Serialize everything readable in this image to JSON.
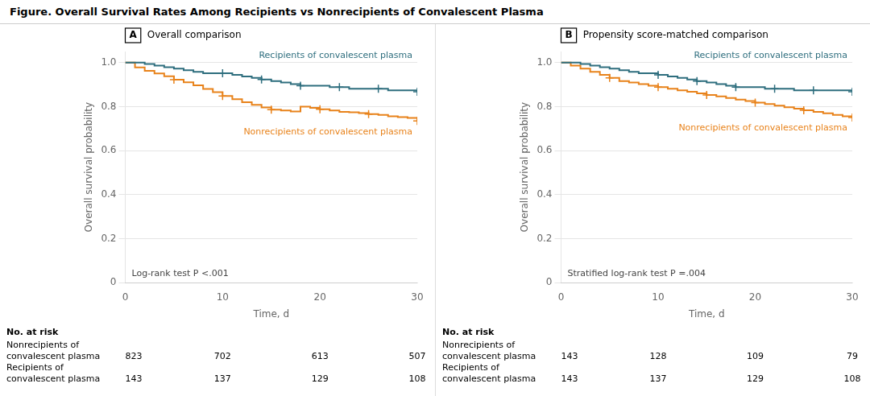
{
  "title": "Figure. Overall Survival Rates Among Recipients vs Nonrecipients of Convalescent Plasma",
  "chart_data": [
    {
      "type": "step",
      "title": "Overall comparison",
      "annotations": [
        "A",
        "Log-rank test P <.001"
      ],
      "xlabel": "Time, d",
      "ylabel": "Overall survival probability",
      "xlim": [
        0,
        30
      ],
      "xticks": [
        0,
        10,
        20,
        30
      ],
      "ylim": [
        0,
        1.05
      ],
      "yticks": [
        0,
        0.2,
        0.4,
        0.6,
        0.8,
        {
          "value": 1,
          "label": "1.0"
        }
      ],
      "grid": "y",
      "series": [
        {
          "name": "Recipients of convalescent plasma",
          "color": "#2E6E7E",
          "marker": "+",
          "x": [
            0,
            1,
            2,
            3,
            4,
            5,
            6,
            7,
            8,
            9,
            10,
            11,
            12,
            13,
            14,
            15,
            16,
            17,
            18,
            19,
            20,
            21,
            22,
            23,
            24,
            25,
            26,
            27,
            28,
            29,
            30
          ],
          "values": [
            1.0,
            1.0,
            0.993,
            0.986,
            0.979,
            0.972,
            0.965,
            0.958,
            0.951,
            0.951,
            0.951,
            0.944,
            0.937,
            0.93,
            0.923,
            0.916,
            0.909,
            0.902,
            0.895,
            0.895,
            0.895,
            0.888,
            0.888,
            0.881,
            0.881,
            0.881,
            0.881,
            0.874,
            0.874,
            0.874,
            0.867
          ],
          "censored_x": [
            10,
            14,
            18,
            22,
            26,
            30
          ],
          "censored_values": [
            0.951,
            0.923,
            0.895,
            0.888,
            0.881,
            0.867
          ]
        },
        {
          "name": "Nonrecipients of convalescent plasma",
          "color": "#E8821A",
          "marker": "+",
          "x": [
            0,
            1,
            2,
            3,
            4,
            5,
            6,
            7,
            8,
            9,
            10,
            11,
            12,
            13,
            14,
            15,
            16,
            17,
            18,
            19,
            20,
            21,
            22,
            23,
            24,
            25,
            26,
            27,
            28,
            29,
            30
          ],
          "values": [
            1.0,
            0.978,
            0.962,
            0.95,
            0.938,
            0.922,
            0.91,
            0.896,
            0.88,
            0.865,
            0.848,
            0.833,
            0.82,
            0.808,
            0.796,
            0.786,
            0.782,
            0.778,
            0.8,
            0.794,
            0.788,
            0.782,
            0.776,
            0.774,
            0.77,
            0.766,
            0.762,
            0.756,
            0.752,
            0.748,
            0.735
          ],
          "censored_x": [
            5,
            10,
            15,
            20,
            25,
            30
          ],
          "censored_values": [
            0.922,
            0.848,
            0.786,
            0.788,
            0.766,
            0.735
          ]
        }
      ],
      "risk_table": {
        "title": "No. at risk",
        "x": [
          0,
          10,
          20,
          30
        ],
        "rows": [
          {
            "name": [
              "Nonrecipients of",
              "convalescent plasma"
            ],
            "values": [
              823,
              702,
              613,
              507
            ]
          },
          {
            "name": [
              "Recipients of",
              "convalescent plasma"
            ],
            "values": [
              143,
              137,
              129,
              108
            ]
          }
        ]
      }
    },
    {
      "type": "step",
      "title": "Propensity score-matched comparison",
      "annotations": [
        "B",
        "Stratified log-rank test P =.004"
      ],
      "xlabel": "Time, d",
      "ylabel": "Overall survival probability",
      "xlim": [
        0,
        30
      ],
      "xticks": [
        0,
        10,
        20,
        30
      ],
      "ylim": [
        0,
        1.05
      ],
      "yticks": [
        0,
        0.2,
        0.4,
        0.6,
        0.8,
        {
          "value": 1,
          "label": "1.0"
        }
      ],
      "grid": "y",
      "series": [
        {
          "name": "Recipients of convalescent plasma",
          "color": "#2E6E7E",
          "marker": "+",
          "x": [
            0,
            1,
            2,
            3,
            4,
            5,
            6,
            7,
            8,
            9,
            10,
            11,
            12,
            13,
            14,
            15,
            16,
            17,
            18,
            19,
            20,
            21,
            22,
            23,
            24,
            25,
            26,
            27,
            28,
            29,
            30
          ],
          "values": [
            1.0,
            1.0,
            0.993,
            0.986,
            0.979,
            0.972,
            0.965,
            0.958,
            0.951,
            0.951,
            0.944,
            0.937,
            0.93,
            0.923,
            0.916,
            0.909,
            0.902,
            0.895,
            0.888,
            0.888,
            0.888,
            0.881,
            0.881,
            0.881,
            0.874,
            0.874,
            0.874,
            0.874,
            0.874,
            0.874,
            0.867
          ],
          "censored_x": [
            10,
            14,
            18,
            22,
            26,
            30
          ],
          "censored_values": [
            0.944,
            0.916,
            0.888,
            0.881,
            0.874,
            0.867
          ]
        },
        {
          "name": "Nonrecipients of convalescent plasma",
          "color": "#E8821A",
          "marker": "+",
          "x": [
            0,
            1,
            2,
            3,
            4,
            5,
            6,
            7,
            8,
            9,
            10,
            11,
            12,
            13,
            14,
            15,
            16,
            17,
            18,
            19,
            20,
            21,
            22,
            23,
            24,
            25,
            26,
            27,
            28,
            29,
            30
          ],
          "values": [
            1.0,
            0.986,
            0.972,
            0.958,
            0.944,
            0.93,
            0.916,
            0.909,
            0.902,
            0.895,
            0.888,
            0.881,
            0.874,
            0.867,
            0.86,
            0.853,
            0.846,
            0.839,
            0.832,
            0.825,
            0.818,
            0.811,
            0.804,
            0.797,
            0.79,
            0.783,
            0.776,
            0.769,
            0.762,
            0.756,
            0.75
          ],
          "censored_x": [
            5,
            10,
            15,
            20,
            25,
            30
          ],
          "censored_values": [
            0.93,
            0.888,
            0.853,
            0.818,
            0.783,
            0.75
          ]
        }
      ],
      "risk_table": {
        "title": "No. at risk",
        "x": [
          0,
          10,
          20,
          30
        ],
        "rows": [
          {
            "name": [
              "Nonrecipients of",
              "convalescent plasma"
            ],
            "values": [
              143,
              128,
              109,
              79
            ]
          },
          {
            "name": [
              "Recipients of",
              "convalescent plasma"
            ],
            "values": [
              143,
              137,
              129,
              108
            ]
          }
        ]
      }
    }
  ]
}
